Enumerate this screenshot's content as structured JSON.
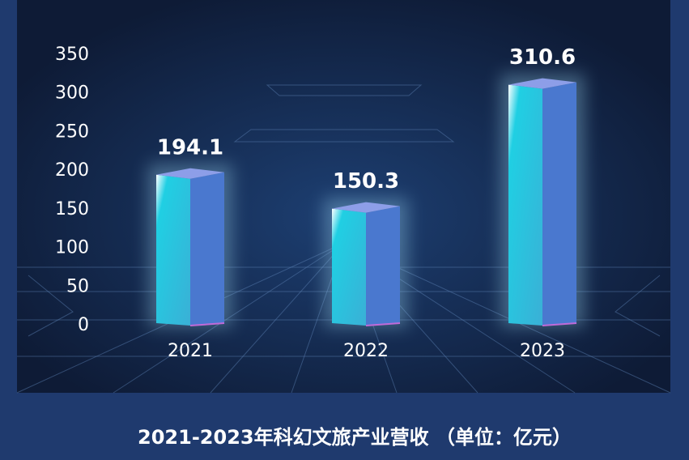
{
  "chart_data": {
    "type": "bar",
    "title": "2021-2023年科幻文旅产业营收 （单位：亿元）",
    "categories": [
      "2021",
      "2022",
      "2023"
    ],
    "values": [
      194.1,
      150.3,
      310.6
    ],
    "color": "#4a78cf",
    "ylim": [
      0,
      350
    ],
    "yticks": [
      0,
      50,
      100,
      150,
      200,
      250,
      300,
      350
    ],
    "grid": false
  }
}
